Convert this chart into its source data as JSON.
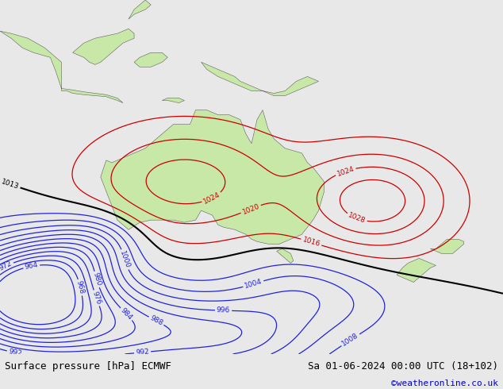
{
  "title_left": "Surface pressure [hPa] ECMWF",
  "title_right": "Sa 01-06-2024 00:00 UTC (18+102)",
  "watermark": "©weatheronline.co.uk",
  "ocean_color": "#b8d0e8",
  "land_color": "#c8e8a8",
  "land_edge_color": "#606060",
  "bottom_bar_color": "#e8e8e8",
  "bottom_text_color": "#000000",
  "watermark_color": "#0000cc",
  "font_size_label": 9,
  "font_size_watermark": 8,
  "lon_min": 95,
  "lon_max": 185,
  "lat_min": -62,
  "lat_max": 12
}
